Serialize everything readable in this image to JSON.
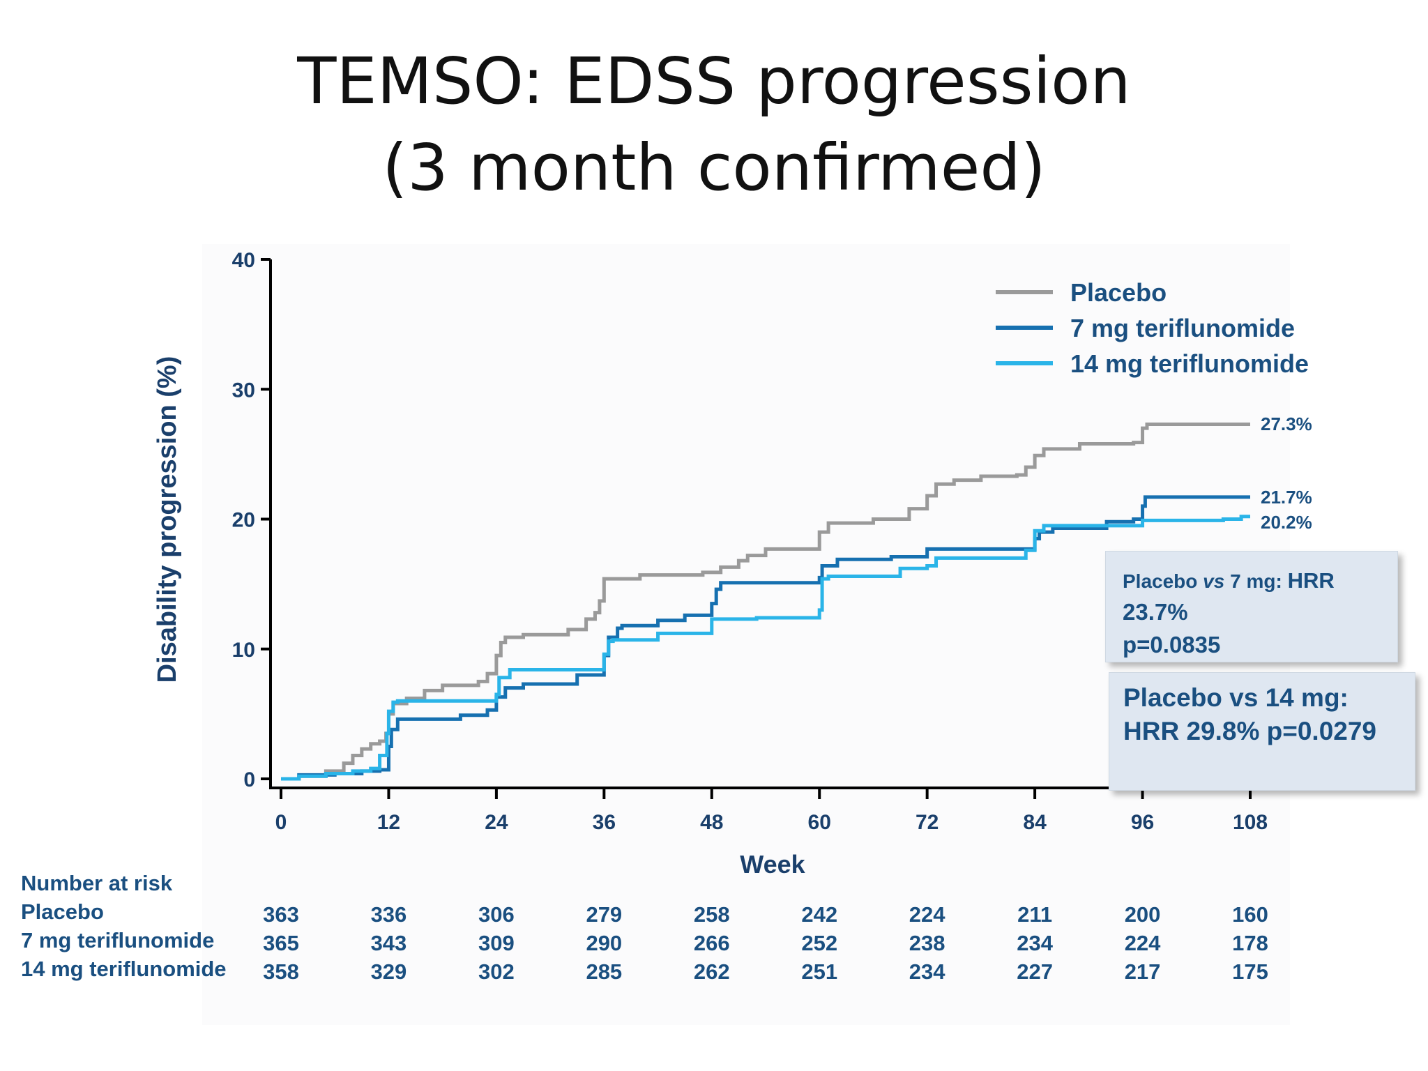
{
  "slide": {
    "title_line1": "TEMSO: EDSS progression",
    "title_line2": "(3 month confirmed)"
  },
  "chart_data": {
    "type": "line",
    "subtype": "kaplan-meier step curve",
    "ylabel": "Disability progression (%)",
    "xlabel": "Week",
    "ylim": [
      0,
      40
    ],
    "xlim": [
      0,
      108
    ],
    "yticks": [
      0,
      10,
      20,
      30,
      40
    ],
    "xticks": [
      0,
      12,
      24,
      36,
      48,
      60,
      72,
      84,
      96,
      108
    ],
    "legend_position": "top-right",
    "series": [
      {
        "name": "Placebo",
        "color": "#9a9a9a",
        "end_label": "27.3%",
        "points": [
          [
            0,
            0
          ],
          [
            2,
            0.2
          ],
          [
            5,
            0.6
          ],
          [
            7,
            1.2
          ],
          [
            8,
            1.8
          ],
          [
            9,
            2.3
          ],
          [
            10,
            2.7
          ],
          [
            11,
            2.9
          ],
          [
            11.7,
            3.5
          ],
          [
            12,
            5
          ],
          [
            12.5,
            5.8
          ],
          [
            14,
            6.2
          ],
          [
            16,
            6.8
          ],
          [
            18,
            7.2
          ],
          [
            22,
            7.5
          ],
          [
            23,
            8.1
          ],
          [
            24,
            9.5
          ],
          [
            24.5,
            10.5
          ],
          [
            25,
            10.9
          ],
          [
            27,
            11.1
          ],
          [
            32,
            11.5
          ],
          [
            34,
            12.3
          ],
          [
            35,
            12.8
          ],
          [
            35.5,
            13.7
          ],
          [
            36,
            15.4
          ],
          [
            40,
            15.7
          ],
          [
            47,
            15.9
          ],
          [
            49,
            16.3
          ],
          [
            51,
            16.8
          ],
          [
            52,
            17.2
          ],
          [
            54,
            17.7
          ],
          [
            60,
            19.0
          ],
          [
            61,
            19.7
          ],
          [
            66,
            20.0
          ],
          [
            70,
            20.8
          ],
          [
            72,
            21.8
          ],
          [
            73,
            22.7
          ],
          [
            75,
            23.0
          ],
          [
            78,
            23.3
          ],
          [
            82,
            23.4
          ],
          [
            83,
            24.0
          ],
          [
            84,
            24.9
          ],
          [
            85,
            25.4
          ],
          [
            89,
            25.8
          ],
          [
            95,
            25.9
          ],
          [
            96,
            27.0
          ],
          [
            96.5,
            27.3
          ],
          [
            108,
            27.3
          ]
        ]
      },
      {
        "name": "7 mg teriflunomide",
        "color": "#1670b0",
        "end_label": "21.7%",
        "points": [
          [
            0,
            0
          ],
          [
            2,
            0.3
          ],
          [
            6,
            0.4
          ],
          [
            9,
            0.6
          ],
          [
            11,
            0.7
          ],
          [
            12,
            2.5
          ],
          [
            12.3,
            3.8
          ],
          [
            13,
            4.6
          ],
          [
            20,
            4.9
          ],
          [
            23,
            5.3
          ],
          [
            24,
            6.3
          ],
          [
            25,
            7.0
          ],
          [
            27,
            7.3
          ],
          [
            33,
            8.0
          ],
          [
            36,
            9.5
          ],
          [
            36.5,
            10.9
          ],
          [
            37.5,
            11.6
          ],
          [
            38,
            11.8
          ],
          [
            42,
            12.2
          ],
          [
            45,
            12.6
          ],
          [
            48,
            13.5
          ],
          [
            48.5,
            14.6
          ],
          [
            49,
            15.1
          ],
          [
            60,
            15.5
          ],
          [
            60.3,
            16.4
          ],
          [
            62,
            16.9
          ],
          [
            68,
            17.1
          ],
          [
            72,
            17.7
          ],
          [
            84,
            18.5
          ],
          [
            84.5,
            19.0
          ],
          [
            86,
            19.3
          ],
          [
            92,
            19.8
          ],
          [
            95,
            20.0
          ],
          [
            96,
            21.0
          ],
          [
            96.3,
            21.7
          ],
          [
            108,
            21.7
          ]
        ]
      },
      {
        "name": "14 mg teriflunomide",
        "color": "#2ab4e8",
        "end_label": "20.2%",
        "points": [
          [
            0,
            0
          ],
          [
            2,
            0.2
          ],
          [
            5,
            0.4
          ],
          [
            8,
            0.6
          ],
          [
            10,
            0.8
          ],
          [
            11,
            1.8
          ],
          [
            11.8,
            3.5
          ],
          [
            12,
            5.2
          ],
          [
            12.5,
            5.9
          ],
          [
            13,
            6.0
          ],
          [
            24,
            6.5
          ],
          [
            24.3,
            7.8
          ],
          [
            25.5,
            8.4
          ],
          [
            36,
            9.6
          ],
          [
            36.5,
            10.6
          ],
          [
            37,
            10.7
          ],
          [
            42,
            11.2
          ],
          [
            48,
            12.3
          ],
          [
            53,
            12.4
          ],
          [
            60,
            13.0
          ],
          [
            60.3,
            15.4
          ],
          [
            61,
            15.6
          ],
          [
            69,
            16.2
          ],
          [
            72,
            16.4
          ],
          [
            73,
            17.0
          ],
          [
            83,
            17.6
          ],
          [
            84,
            19.1
          ],
          [
            85,
            19.5
          ],
          [
            96,
            19.9
          ],
          [
            105,
            20.0
          ],
          [
            107,
            20.2
          ],
          [
            108,
            20.2
          ]
        ]
      }
    ],
    "annotations": {
      "box1": {
        "line1_a": "Placebo ",
        "line1_vs": "vs",
        "line1_b": " 7 mg: ",
        "line1_c": "HRR",
        "line2": "23.7%",
        "line3": "p=0.0835"
      },
      "box2": {
        "line1": "Placebo vs 14 mg:",
        "line2": "HRR 29.8% p=0.0279"
      }
    },
    "risk_table": {
      "header": "Number at risk",
      "rows": [
        {
          "label": "Placebo",
          "values": [
            "363",
            "336",
            "306",
            "279",
            "258",
            "242",
            "224",
            "211",
            "200",
            "160"
          ]
        },
        {
          "label": "7 mg teriflunomide",
          "values": [
            "365",
            "343",
            "309",
            "290",
            "266",
            "252",
            "238",
            "234",
            "224",
            "178"
          ]
        },
        {
          "label": "14 mg teriflunomide",
          "values": [
            "358",
            "329",
            "302",
            "285",
            "262",
            "251",
            "234",
            "227",
            "217",
            "175"
          ]
        }
      ]
    }
  }
}
